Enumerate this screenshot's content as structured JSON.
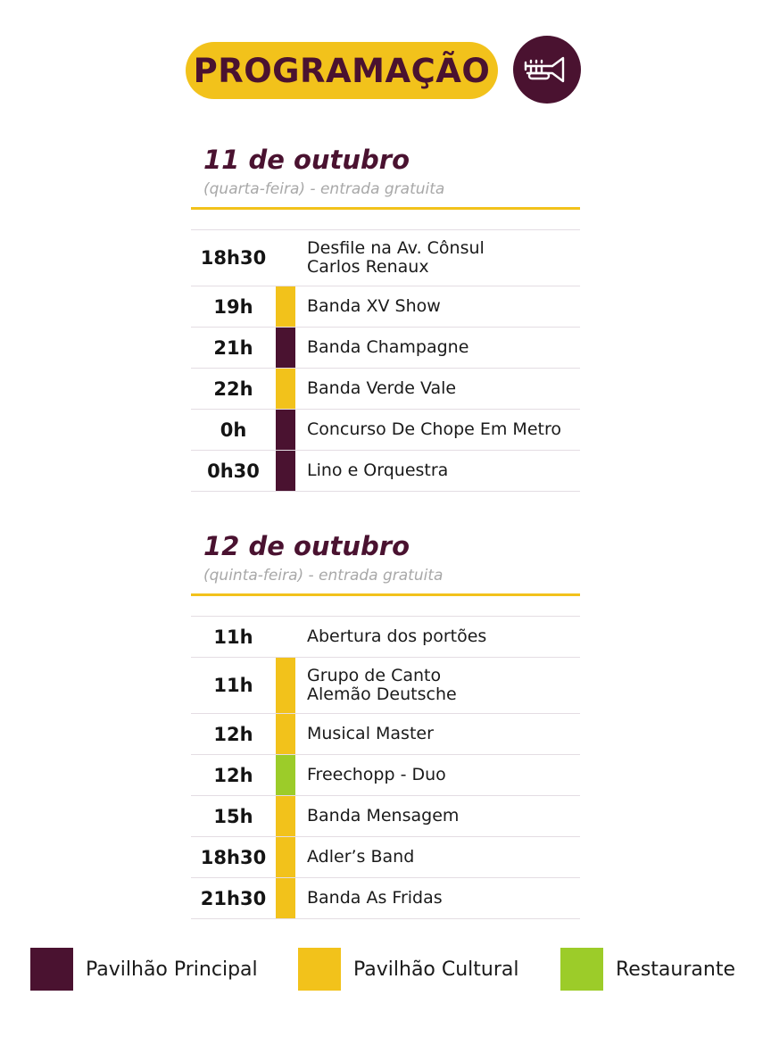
{
  "header": {
    "title": "PROGRAMAÇÃO",
    "icon": "trumpet-icon"
  },
  "colors": {
    "principal": "#4a1230",
    "cultural": "#f2c21b",
    "restaurante": "#9ccc29"
  },
  "days": [
    {
      "title": "11 de outubro",
      "subtitle": "(quarta-feira) - entrada gratuita",
      "events": [
        {
          "time": "18h30",
          "name": "Desfile na Av. Cônsul\nCarlos Renaux",
          "venue": "none"
        },
        {
          "time": "19h",
          "name": "Banda XV Show",
          "venue": "cultural"
        },
        {
          "time": "21h",
          "name": "Banda Champagne",
          "venue": "principal"
        },
        {
          "time": "22h",
          "name": "Banda Verde Vale",
          "venue": "cultural"
        },
        {
          "time": "0h",
          "name": "Concurso De Chope Em Metro",
          "venue": "principal"
        },
        {
          "time": "0h30",
          "name": "Lino e Orquestra",
          "venue": "principal"
        }
      ]
    },
    {
      "title": "12 de outubro",
      "subtitle": "(quinta-feira) - entrada gratuita",
      "events": [
        {
          "time": "11h",
          "name": "Abertura dos portões",
          "venue": "none"
        },
        {
          "time": "11h",
          "name": "Grupo de Canto\nAlemão Deutsche",
          "venue": "cultural"
        },
        {
          "time": "12h",
          "name": "Musical Master",
          "venue": "cultural"
        },
        {
          "time": "12h",
          "name": "Freechopp - Duo",
          "venue": "restaurante"
        },
        {
          "time": "15h",
          "name": "Banda Mensagem",
          "venue": "cultural"
        },
        {
          "time": "18h30",
          "name": "Adler’s Band",
          "venue": "cultural"
        },
        {
          "time": "21h30",
          "name": "Banda As Fridas",
          "venue": "cultural"
        }
      ]
    }
  ],
  "legend": [
    {
      "label": "Pavilhão Principal",
      "color": "#4a1230"
    },
    {
      "label": "Pavilhão Cultural",
      "color": "#f2c21b"
    },
    {
      "label": "Restaurante",
      "color": "#9ccc29"
    }
  ]
}
